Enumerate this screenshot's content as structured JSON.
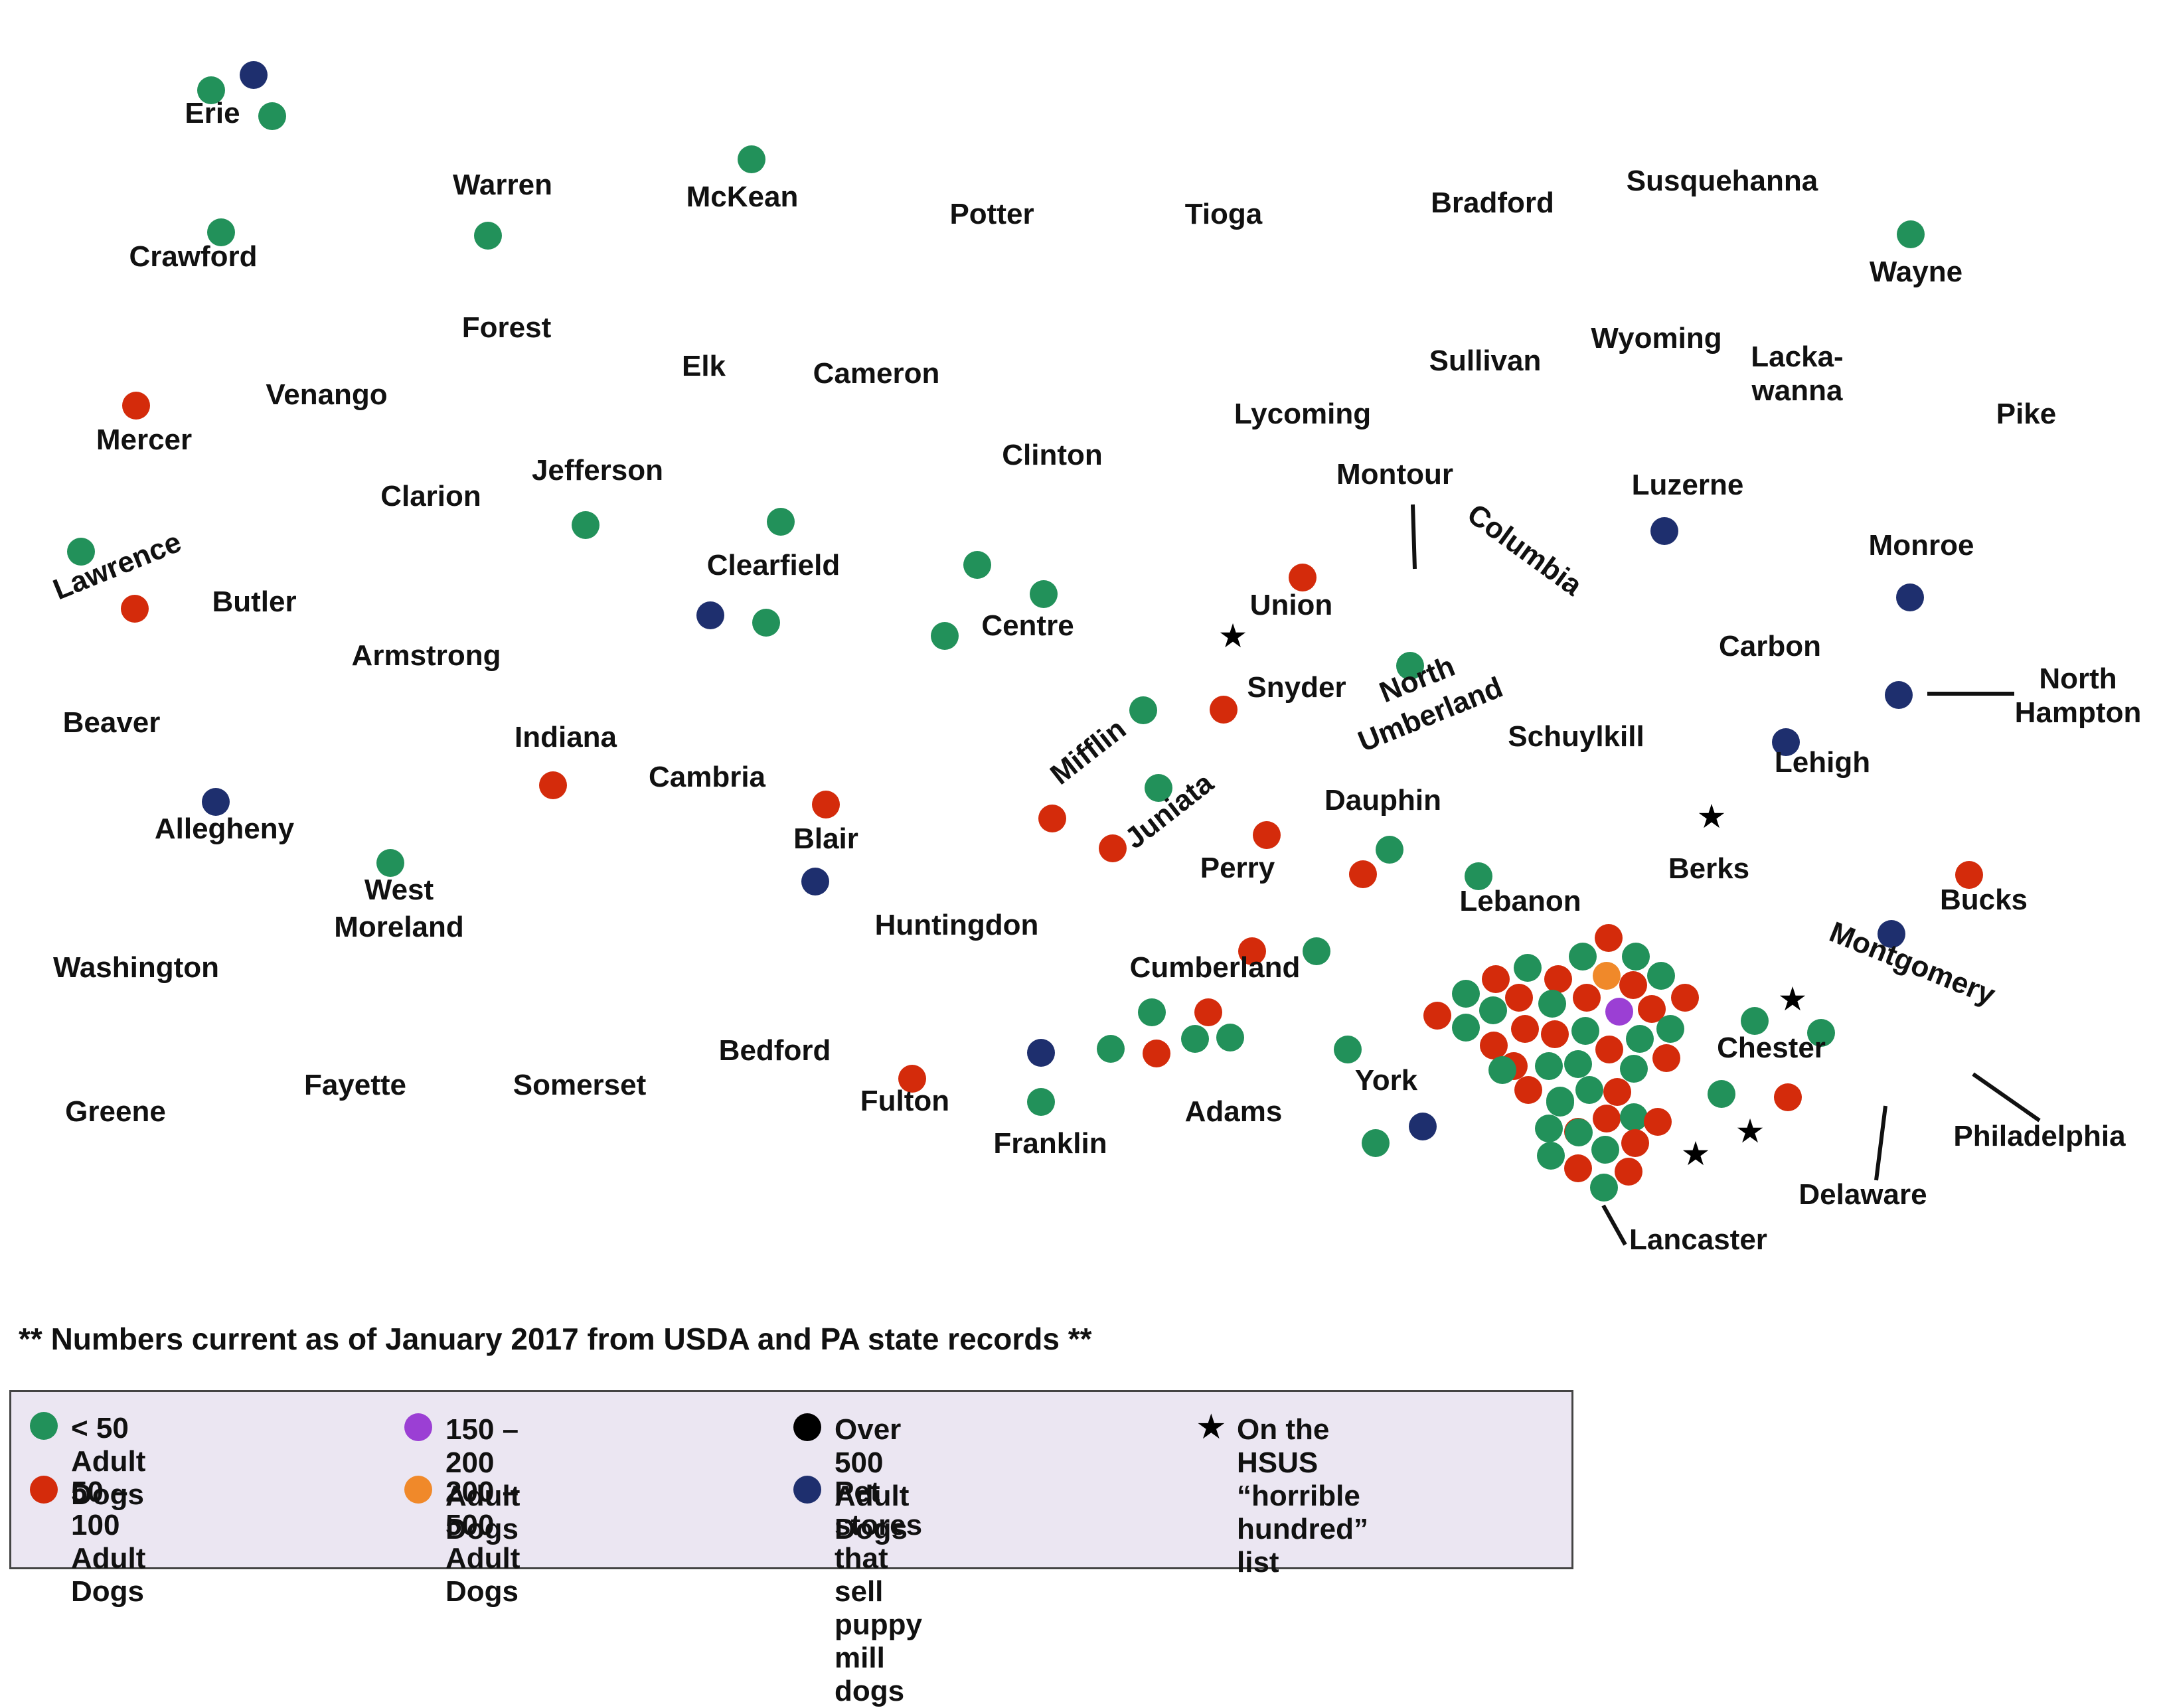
{
  "colors": {
    "lt50": "#22915a",
    "50to100": "#d42b0b",
    "150to200": "#9b3fd4",
    "200to500": "#f0892a",
    "over500": "#000000",
    "pet_store": "#1e2f6e",
    "star": "#000000"
  },
  "counties": [
    "Erie",
    "Warren",
    "McKean",
    "Potter",
    "Tioga",
    "Bradford",
    "Susquehanna",
    "Crawford",
    "Wayne",
    "Forest",
    "Elk",
    "Cameron",
    "Sullivan",
    "Wyoming",
    "Lacka-",
    "wanna",
    "Venango",
    "Mercer",
    "Lycoming",
    "Pike",
    "Jefferson",
    "Clarion",
    "Clinton",
    "Montour",
    "Luzerne",
    "Columbia",
    "Lawrence",
    "Clearfield",
    "Monroe",
    "Butler",
    "Union",
    "Centre",
    "Armstrong",
    "Carbon",
    "North",
    "Umberland",
    "Snyder",
    "North",
    "Hampton",
    "Beaver",
    "Indiana",
    "Schuylkill",
    "Mifflin",
    "Lehigh",
    "Cambria",
    "Juniata",
    "Dauphin",
    "Allegheny",
    "Blair",
    "Berks",
    "Perry",
    "West",
    "Moreland",
    "Lebanon",
    "Bucks",
    "Huntingdon",
    "Montgomery",
    "Washington",
    "Cumberland",
    "Chester",
    "Bedford",
    "Fayette",
    "Somerset",
    "York",
    "Fulton",
    "Adams",
    "Franklin",
    "Philadelphia",
    "Greene",
    "Delaware",
    "Lancaster"
  ],
  "note": "** Numbers current as of January 2017 from USDA and PA state records **",
  "legend": [
    {
      "label": "< 50 Adult Dogs",
      "symbol": "dot",
      "color": "#22915a"
    },
    {
      "label": "50 – 100 Adult Dogs",
      "symbol": "dot",
      "color": "#d42b0b"
    },
    {
      "label": "150 – 200 Adult Dogs",
      "symbol": "dot",
      "color": "#9b3fd4"
    },
    {
      "label": "200 – 500 Adult Dogs",
      "symbol": "dot",
      "color": "#f0892a"
    },
    {
      "label": "Over 500 Adult Dogs",
      "symbol": "dot",
      "color": "#000000"
    },
    {
      "label": "Pet stores that\nsell puppy mill dogs",
      "symbol": "dot",
      "color": "#1e2f6e"
    },
    {
      "label": "On the HSUS\n“horrible hundred” list",
      "symbol": "star",
      "color": "#000000"
    }
  ],
  "legend_star_glyph": "★"
}
